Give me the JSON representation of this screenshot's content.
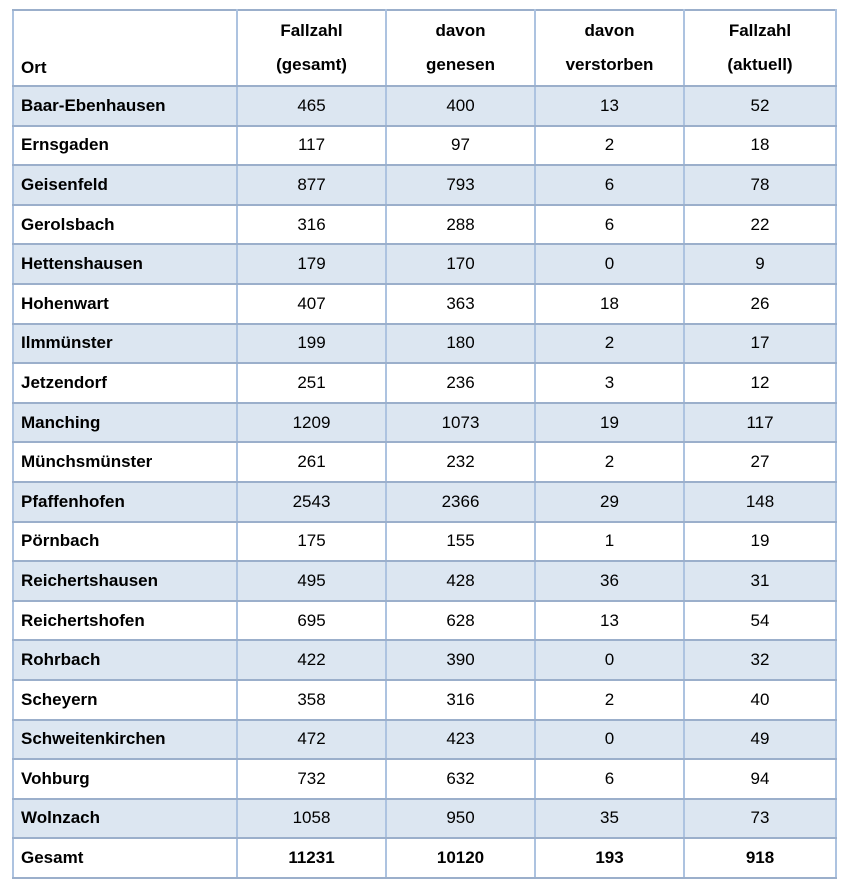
{
  "colors": {
    "row_shade": "#dce6f1",
    "border_vertical": "#adc3e0",
    "border_horizontal": "#9bafcb",
    "text": "#000000",
    "background": "#ffffff"
  },
  "table": {
    "columns": [
      {
        "line1": "",
        "line2": "Ort"
      },
      {
        "line1": "Fallzahl",
        "line2": "(gesamt)"
      },
      {
        "line1": "davon",
        "line2": "genesen"
      },
      {
        "line1": "davon",
        "line2": "verstorben"
      },
      {
        "line1": "Fallzahl",
        "line2": "(aktuell)"
      }
    ],
    "rows": [
      {
        "ort": "Baar-Ebenhausen",
        "gesamt": 465,
        "genesen": 400,
        "verstorben": 13,
        "aktuell": 52
      },
      {
        "ort": "Ernsgaden",
        "gesamt": 117,
        "genesen": 97,
        "verstorben": 2,
        "aktuell": 18
      },
      {
        "ort": "Geisenfeld",
        "gesamt": 877,
        "genesen": 793,
        "verstorben": 6,
        "aktuell": 78
      },
      {
        "ort": "Gerolsbach",
        "gesamt": 316,
        "genesen": 288,
        "verstorben": 6,
        "aktuell": 22
      },
      {
        "ort": "Hettenshausen",
        "gesamt": 179,
        "genesen": 170,
        "verstorben": 0,
        "aktuell": 9
      },
      {
        "ort": "Hohenwart",
        "gesamt": 407,
        "genesen": 363,
        "verstorben": 18,
        "aktuell": 26
      },
      {
        "ort": "Ilmmünster",
        "gesamt": 199,
        "genesen": 180,
        "verstorben": 2,
        "aktuell": 17
      },
      {
        "ort": "Jetzendorf",
        "gesamt": 251,
        "genesen": 236,
        "verstorben": 3,
        "aktuell": 12
      },
      {
        "ort": "Manching",
        "gesamt": 1209,
        "genesen": 1073,
        "verstorben": 19,
        "aktuell": 117
      },
      {
        "ort": "Münchsmünster",
        "gesamt": 261,
        "genesen": 232,
        "verstorben": 2,
        "aktuell": 27
      },
      {
        "ort": "Pfaffenhofen",
        "gesamt": 2543,
        "genesen": 2366,
        "verstorben": 29,
        "aktuell": 148
      },
      {
        "ort": "Pörnbach",
        "gesamt": 175,
        "genesen": 155,
        "verstorben": 1,
        "aktuell": 19
      },
      {
        "ort": "Reichertshausen",
        "gesamt": 495,
        "genesen": 428,
        "verstorben": 36,
        "aktuell": 31
      },
      {
        "ort": "Reichertshofen",
        "gesamt": 695,
        "genesen": 628,
        "verstorben": 13,
        "aktuell": 54
      },
      {
        "ort": "Rohrbach",
        "gesamt": 422,
        "genesen": 390,
        "verstorben": 0,
        "aktuell": 32
      },
      {
        "ort": "Scheyern",
        "gesamt": 358,
        "genesen": 316,
        "verstorben": 2,
        "aktuell": 40
      },
      {
        "ort": "Schweitenkirchen",
        "gesamt": 472,
        "genesen": 423,
        "verstorben": 0,
        "aktuell": 49
      },
      {
        "ort": "Vohburg",
        "gesamt": 732,
        "genesen": 632,
        "verstorben": 6,
        "aktuell": 94
      },
      {
        "ort": "Wolnzach",
        "gesamt": 1058,
        "genesen": 950,
        "verstorben": 35,
        "aktuell": 73
      },
      {
        "ort": "Gesamt",
        "gesamt": 11231,
        "genesen": 10120,
        "verstorben": 193,
        "aktuell": 918,
        "is_total": true
      }
    ]
  },
  "chart_data": {
    "type": "table",
    "title": "",
    "columns": [
      "Ort",
      "Fallzahl (gesamt)",
      "davon genesen",
      "davon verstorben",
      "Fallzahl (aktuell)"
    ],
    "rows": [
      [
        "Baar-Ebenhausen",
        465,
        400,
        13,
        52
      ],
      [
        "Ernsgaden",
        117,
        97,
        2,
        18
      ],
      [
        "Geisenfeld",
        877,
        793,
        6,
        78
      ],
      [
        "Gerolsbach",
        316,
        288,
        6,
        22
      ],
      [
        "Hettenshausen",
        179,
        170,
        0,
        9
      ],
      [
        "Hohenwart",
        407,
        363,
        18,
        26
      ],
      [
        "Ilmmünster",
        199,
        180,
        2,
        17
      ],
      [
        "Jetzendorf",
        251,
        236,
        3,
        12
      ],
      [
        "Manching",
        1209,
        1073,
        19,
        117
      ],
      [
        "Münchsmünster",
        261,
        232,
        2,
        27
      ],
      [
        "Pfaffenhofen",
        2543,
        2366,
        29,
        148
      ],
      [
        "Pörnbach",
        175,
        155,
        1,
        19
      ],
      [
        "Reichertshausen",
        495,
        428,
        36,
        31
      ],
      [
        "Reichertshofen",
        695,
        628,
        13,
        54
      ],
      [
        "Rohrbach",
        422,
        390,
        0,
        32
      ],
      [
        "Scheyern",
        358,
        316,
        2,
        40
      ],
      [
        "Schweitenkirchen",
        472,
        423,
        0,
        49
      ],
      [
        "Vohburg",
        732,
        632,
        6,
        94
      ],
      [
        "Wolnzach",
        1058,
        950,
        35,
        73
      ],
      [
        "Gesamt",
        11231,
        10120,
        193,
        918
      ]
    ]
  }
}
